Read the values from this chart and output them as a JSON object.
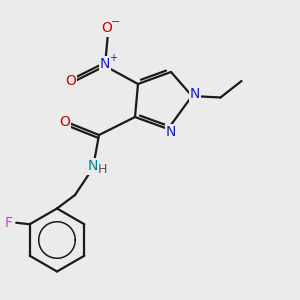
{
  "background_color": "#ebebeb",
  "bond_color": "#1a1a1a",
  "bond_width": 1.6,
  "atom_colors": {
    "N": "#1a1acc",
    "O": "#cc0000",
    "F": "#cc44cc",
    "NH": "#008888",
    "Nplus": "#1a1acc",
    "Ominus": "#cc0000"
  },
  "font_size": 10,
  "fig_size": [
    3.0,
    3.0
  ],
  "dpi": 100
}
